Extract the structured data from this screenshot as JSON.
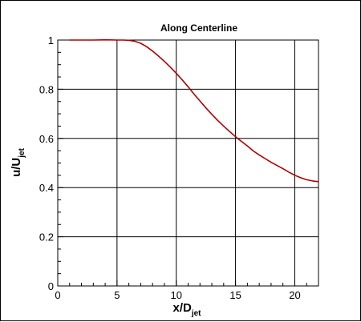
{
  "chart_data": {
    "type": "line",
    "title": "Along Centerline",
    "xlabel": {
      "main": "x/D",
      "sub": "jet"
    },
    "ylabel": {
      "main": "u/U",
      "sub": "jet"
    },
    "xlim": [
      0,
      22
    ],
    "ylim": [
      0,
      1
    ],
    "xticks": [
      0,
      5,
      10,
      15,
      20
    ],
    "yticks": [
      0,
      0.2,
      0.4,
      0.6,
      0.8,
      1
    ],
    "ytick_labels": [
      "0",
      "0.2",
      "0.4",
      "0.6",
      "0.8",
      "1"
    ],
    "grid": true,
    "series": [
      {
        "color": "#b00000",
        "x": [
          1,
          2,
          3,
          4,
          5,
          5.5,
          6,
          6.5,
          7,
          7.5,
          8,
          8.5,
          9,
          9.5,
          10,
          10.5,
          11,
          11.5,
          12,
          12.5,
          13,
          13.5,
          14,
          14.5,
          15,
          15.5,
          16,
          16.5,
          17,
          17.5,
          18,
          18.5,
          19,
          19.5,
          20,
          20.5,
          21,
          21.5,
          22
        ],
        "y": [
          1.0,
          1.0,
          1.0,
          1.001,
          1.0,
          1.0,
          0.999,
          0.995,
          0.987,
          0.973,
          0.955,
          0.935,
          0.913,
          0.89,
          0.865,
          0.838,
          0.81,
          0.78,
          0.752,
          0.724,
          0.698,
          0.673,
          0.65,
          0.628,
          0.607,
          0.588,
          0.569,
          0.549,
          0.533,
          0.518,
          0.503,
          0.49,
          0.477,
          0.463,
          0.45,
          0.44,
          0.432,
          0.427,
          0.424
        ]
      }
    ]
  }
}
